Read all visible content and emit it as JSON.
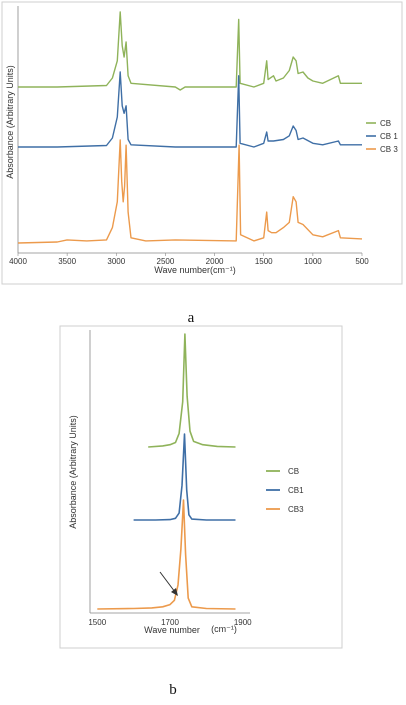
{
  "chart_data": [
    {
      "type": "line",
      "panel_label": "a",
      "xlabel": "Wave number(cm⁻¹)",
      "ylabel": "Absorbance (Arbitrary Units)",
      "xlim": [
        4000,
        500
      ],
      "x_reversed": true,
      "xticks": [
        "4000",
        "3500",
        "3000",
        "2500",
        "2000",
        "1500",
        "1000",
        "500"
      ],
      "legend_position": "right",
      "colors": {
        "CB": "#8fb35a",
        "CB 1": "#3f6fa6",
        "CB 3": "#ec9a4c"
      },
      "series": [
        {
          "name": "CB",
          "baseline": 0.72,
          "points": [
            [
              4000,
              0
            ],
            [
              3600,
              0
            ],
            [
              3100,
              0.02
            ],
            [
              3040,
              0.12
            ],
            [
              2990,
              0.35
            ],
            [
              2960,
              1.0
            ],
            [
              2940,
              0.55
            ],
            [
              2920,
              0.4
            ],
            [
              2900,
              0.6
            ],
            [
              2880,
              0.15
            ],
            [
              2850,
              0.05
            ],
            [
              2400,
              0.0
            ],
            [
              2350,
              -0.04
            ],
            [
              2300,
              0.0
            ],
            [
              1780,
              0.0
            ],
            [
              1755,
              0.9
            ],
            [
              1740,
              0.05
            ],
            [
              1600,
              0.0
            ],
            [
              1500,
              0.05
            ],
            [
              1470,
              0.35
            ],
            [
              1455,
              0.1
            ],
            [
              1400,
              0.15
            ],
            [
              1375,
              0.08
            ],
            [
              1300,
              0.12
            ],
            [
              1240,
              0.22
            ],
            [
              1200,
              0.4
            ],
            [
              1170,
              0.35
            ],
            [
              1150,
              0.18
            ],
            [
              1100,
              0.2
            ],
            [
              1050,
              0.12
            ],
            [
              1000,
              0.08
            ],
            [
              900,
              0.05
            ],
            [
              740,
              0.15
            ],
            [
              720,
              0.05
            ],
            [
              500,
              0.05
            ]
          ]
        },
        {
          "name": "CB 1",
          "baseline": 0.44,
          "points": [
            [
              4000,
              0
            ],
            [
              3600,
              0
            ],
            [
              3100,
              0.02
            ],
            [
              3040,
              0.12
            ],
            [
              2990,
              0.4
            ],
            [
              2960,
              1.0
            ],
            [
              2940,
              0.55
            ],
            [
              2920,
              0.45
            ],
            [
              2900,
              0.55
            ],
            [
              2880,
              0.1
            ],
            [
              2850,
              0.03
            ],
            [
              2400,
              0.0
            ],
            [
              1780,
              0.0
            ],
            [
              1755,
              0.95
            ],
            [
              1740,
              0.05
            ],
            [
              1600,
              0.0
            ],
            [
              1500,
              0.05
            ],
            [
              1470,
              0.2
            ],
            [
              1455,
              0.08
            ],
            [
              1400,
              0.08
            ],
            [
              1300,
              0.1
            ],
            [
              1240,
              0.15
            ],
            [
              1200,
              0.28
            ],
            [
              1170,
              0.22
            ],
            [
              1150,
              0.1
            ],
            [
              1100,
              0.12
            ],
            [
              1000,
              0.05
            ],
            [
              900,
              0.03
            ],
            [
              740,
              0.08
            ],
            [
              720,
              0.03
            ],
            [
              500,
              0.03
            ]
          ]
        },
        {
          "name": "CB 3",
          "baseline": 0.0,
          "points": [
            [
              4000,
              0.0
            ],
            [
              3600,
              0.01
            ],
            [
              3500,
              0.03
            ],
            [
              3300,
              0.02
            ],
            [
              3100,
              0.03
            ],
            [
              3040,
              0.15
            ],
            [
              2990,
              0.4
            ],
            [
              2960,
              1.0
            ],
            [
              2945,
              0.6
            ],
            [
              2930,
              0.4
            ],
            [
              2915,
              0.55
            ],
            [
              2900,
              0.95
            ],
            [
              2880,
              0.3
            ],
            [
              2850,
              0.05
            ],
            [
              2700,
              0.02
            ],
            [
              2400,
              0.03
            ],
            [
              1780,
              0.02
            ],
            [
              1750,
              0.95
            ],
            [
              1735,
              0.08
            ],
            [
              1600,
              0.02
            ],
            [
              1500,
              0.05
            ],
            [
              1470,
              0.3
            ],
            [
              1455,
              0.12
            ],
            [
              1420,
              0.1
            ],
            [
              1375,
              0.1
            ],
            [
              1300,
              0.15
            ],
            [
              1240,
              0.2
            ],
            [
              1200,
              0.45
            ],
            [
              1170,
              0.4
            ],
            [
              1150,
              0.2
            ],
            [
              1100,
              0.18
            ],
            [
              1000,
              0.08
            ],
            [
              900,
              0.06
            ],
            [
              740,
              0.12
            ],
            [
              720,
              0.05
            ],
            [
              500,
              0.04
            ]
          ]
        }
      ]
    },
    {
      "type": "line",
      "panel_label": "b",
      "xlabel": "Wave number",
      "xlabel_unit": "(cm⁻¹)",
      "ylabel": "Absorbance (Arbitrary Units)",
      "xlim": [
        1480,
        1920
      ],
      "xticks": [
        "1500",
        "1700",
        "1900"
      ],
      "legend_position": "right",
      "annotation": "arrow pointing to shoulder of CB3 peak near 1715 cm⁻¹",
      "colors": {
        "CB": "#8fb35a",
        "CB1": "#3f6fa6",
        "CB3": "#ec9a4c"
      },
      "series": [
        {
          "name": "CB",
          "x_range": [
            1640,
            1880
          ],
          "points": [
            [
              1640,
              0
            ],
            [
              1680,
              0.01
            ],
            [
              1700,
              0.02
            ],
            [
              1715,
              0.04
            ],
            [
              1725,
              0.12
            ],
            [
              1735,
              0.4
            ],
            [
              1741,
              1.0
            ],
            [
              1747,
              0.45
            ],
            [
              1755,
              0.14
            ],
            [
              1765,
              0.05
            ],
            [
              1790,
              0.02
            ],
            [
              1830,
              0.005
            ],
            [
              1880,
              0
            ]
          ]
        },
        {
          "name": "CB1",
          "x_range": [
            1600,
            1880
          ],
          "points": [
            [
              1600,
              0
            ],
            [
              1660,
              0
            ],
            [
              1700,
              0.005
            ],
            [
              1715,
              0.02
            ],
            [
              1725,
              0.08
            ],
            [
              1733,
              0.4
            ],
            [
              1740,
              1.0
            ],
            [
              1746,
              0.35
            ],
            [
              1752,
              0.06
            ],
            [
              1760,
              0.01
            ],
            [
              1800,
              0
            ],
            [
              1880,
              0
            ]
          ]
        },
        {
          "name": "CB3",
          "x_range": [
            1500,
            1880
          ],
          "points": [
            [
              1500,
              0
            ],
            [
              1600,
              0.005
            ],
            [
              1650,
              0.01
            ],
            [
              1680,
              0.02
            ],
            [
              1700,
              0.04
            ],
            [
              1712,
              0.08
            ],
            [
              1722,
              0.22
            ],
            [
              1730,
              0.55
            ],
            [
              1737,
              1.0
            ],
            [
              1743,
              0.5
            ],
            [
              1750,
              0.1
            ],
            [
              1760,
              0.02
            ],
            [
              1800,
              0.005
            ],
            [
              1880,
              0
            ]
          ]
        }
      ]
    }
  ]
}
